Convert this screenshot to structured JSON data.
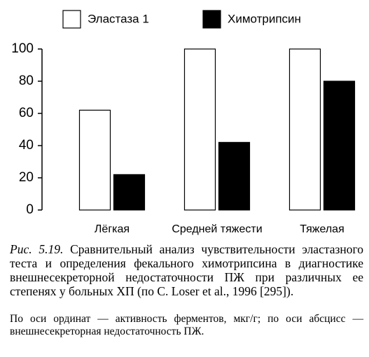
{
  "chart_data": {
    "type": "bar",
    "categories": [
      "Лёгкая",
      "Средней тяжести",
      "Тяжелая"
    ],
    "series": [
      {
        "name": "Эластаза 1",
        "color": "#ffffff",
        "values": [
          62,
          100,
          100
        ]
      },
      {
        "name": "Химотрипсин",
        "color": "#000000",
        "values": [
          22,
          42,
          80
        ]
      }
    ],
    "ylim": [
      0,
      100
    ],
    "yticks": [
      0,
      20,
      40,
      60,
      80,
      100
    ],
    "grid": false,
    "legend": "top"
  },
  "caption": {
    "label": "Рис. 5.19.",
    "text": "Сравнительный анализ чувствительности эластазного теста и определения фекального химотрипсина в диагностике внешнесекреторной недостаточности ПЖ при различных ее степенях у больных ХП (по C. Loser et al., 1996 [295])."
  },
  "note": "По оси ординат — активность ферментов, мкг/г; по оси абсцисс — внешнесекреторная недостаточность ПЖ."
}
